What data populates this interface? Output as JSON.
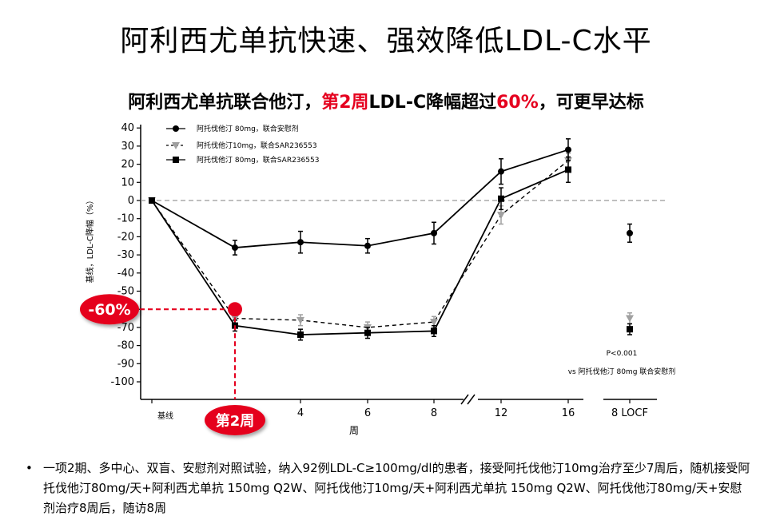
{
  "title": "阿利西尤单抗快速、强效降低LDL-C水平",
  "subtitle": {
    "part1": "阿利西尤单抗联合他汀，",
    "part2": "第2周",
    "part3": "LDL-C降幅超过",
    "part4": "60%",
    "part5": "，可更早达标"
  },
  "colors": {
    "accent_red": "#e5001f",
    "series_black": "#000000",
    "series_gray": "#a0a0a0"
  },
  "chart_data": {
    "type": "line",
    "ylabel": "基线，LDL-C降幅（%）",
    "xlabel": "周",
    "ylim": [
      -100,
      40
    ],
    "yticks": [
      40,
      30,
      20,
      10,
      0,
      -10,
      -20,
      -30,
      -40,
      -50,
      -60,
      -70,
      -80,
      -90,
      -100
    ],
    "ytick_labels": [
      "40",
      "30",
      "20",
      "10",
      "0",
      "-10",
      "-20",
      "-30",
      "-40",
      "-50",
      "-60",
      "-70",
      "-80",
      "-90",
      "-100"
    ],
    "xtick_labels": [
      "基线",
      "4",
      "6",
      "8",
      "12",
      "16",
      "8 LOCF"
    ],
    "series": [
      {
        "name": "阿托伐他汀 80mg，联合安慰剂",
        "marker": "circle",
        "line": "solid",
        "color": "#000000",
        "points": [
          {
            "x": "基线",
            "y": 0
          },
          {
            "x": "2",
            "y": -26
          },
          {
            "x": "4",
            "y": -23
          },
          {
            "x": "6",
            "y": -25
          },
          {
            "x": "8",
            "y": -18
          },
          {
            "x": "12",
            "y": 16
          },
          {
            "x": "16",
            "y": 28
          }
        ],
        "errors": [
          0,
          4,
          6,
          4,
          6,
          7,
          6
        ],
        "locf": {
          "y": -18,
          "err": 5
        }
      },
      {
        "name": "阿托伐他汀10mg，联合SAR236553",
        "marker": "triangle-down",
        "line": "dashed",
        "color": "#a0a0a0",
        "points": [
          {
            "x": "基线",
            "y": 0
          },
          {
            "x": "2",
            "y": -65
          },
          {
            "x": "4",
            "y": -66
          },
          {
            "x": "6",
            "y": -70
          },
          {
            "x": "8",
            "y": -67
          },
          {
            "x": "12",
            "y": -8
          },
          {
            "x": "16",
            "y": 22
          }
        ],
        "errors": [
          0,
          3,
          3,
          3,
          3,
          5,
          4
        ],
        "locf": {
          "y": -65,
          "err": 3
        }
      },
      {
        "name": "阿托伐他汀 80mg，联合SAR236553",
        "marker": "square",
        "line": "solid",
        "color": "#000000",
        "points": [
          {
            "x": "基线",
            "y": 0
          },
          {
            "x": "2",
            "y": -69
          },
          {
            "x": "4",
            "y": -74
          },
          {
            "x": "6",
            "y": -73
          },
          {
            "x": "8",
            "y": -72
          },
          {
            "x": "12",
            "y": 1
          },
          {
            "x": "16",
            "y": 17
          }
        ],
        "errors": [
          0,
          3,
          3,
          3,
          3,
          6,
          7
        ],
        "locf": {
          "y": -71,
          "err": 3
        }
      }
    ],
    "annotations": {
      "pvalue": "P<0.001",
      "pvalue_note": "vs 阿托伐他汀 80mg 联合安慰剂",
      "callout_value": "-60%",
      "callout_week": "第2周",
      "callout_y": -60
    }
  },
  "bullet": "一项2期、多中心、双盲、安慰剂对照试验，纳入92例LDL-C≥100mg/dl的患者，接受阿托伐他汀10mg治疗至少7周后，随机接受阿托伐他汀80mg/天+阿利西尤单抗 150mg Q2W、阿托伐他汀10mg/天+阿利西尤单抗 150mg Q2W、阿托伐他汀80mg/天+安慰剂治疗8周后，随访8周",
  "bullet_marker": "•"
}
